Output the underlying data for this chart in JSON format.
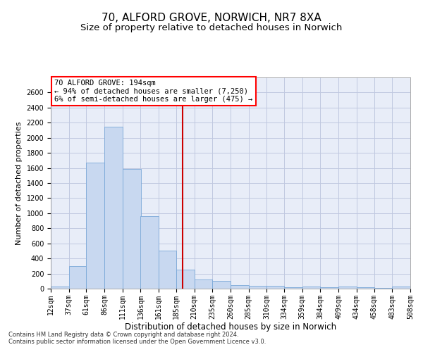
{
  "title": "70, ALFORD GROVE, NORWICH, NR7 8XA",
  "subtitle": "Size of property relative to detached houses in Norwich",
  "xlabel": "Distribution of detached houses by size in Norwich",
  "ylabel": "Number of detached properties",
  "bar_color": "#c8d8f0",
  "bar_edge_color": "#7aa8d8",
  "ax_bg_color": "#e8edf8",
  "vline_color": "#cc0000",
  "vline_x": 194,
  "annotation_lines": [
    "70 ALFORD GROVE: 194sqm",
    "← 94% of detached houses are smaller (7,250)",
    "6% of semi-detached houses are larger (475) →"
  ],
  "footer_lines": [
    "Contains HM Land Registry data © Crown copyright and database right 2024.",
    "Contains public sector information licensed under the Open Government Licence v3.0."
  ],
  "bin_edges": [
    12,
    37,
    61,
    86,
    111,
    136,
    161,
    185,
    210,
    235,
    260,
    285,
    310,
    334,
    359,
    384,
    409,
    434,
    458,
    483,
    508
  ],
  "bar_heights": [
    25,
    300,
    1670,
    2150,
    1590,
    960,
    500,
    250,
    120,
    100,
    50,
    35,
    35,
    20,
    30,
    20,
    25,
    15,
    5,
    25
  ],
  "ylim": [
    0,
    2800
  ],
  "yticks": [
    0,
    200,
    400,
    600,
    800,
    1000,
    1200,
    1400,
    1600,
    1800,
    2000,
    2200,
    2400,
    2600
  ],
  "background_color": "#ffffff",
  "grid_color": "#c0c8e0",
  "title_fontsize": 11,
  "subtitle_fontsize": 9.5,
  "tick_fontsize": 7,
  "ylabel_fontsize": 8,
  "xlabel_fontsize": 8.5,
  "ann_fontsize": 7.5,
  "footer_fontsize": 6
}
